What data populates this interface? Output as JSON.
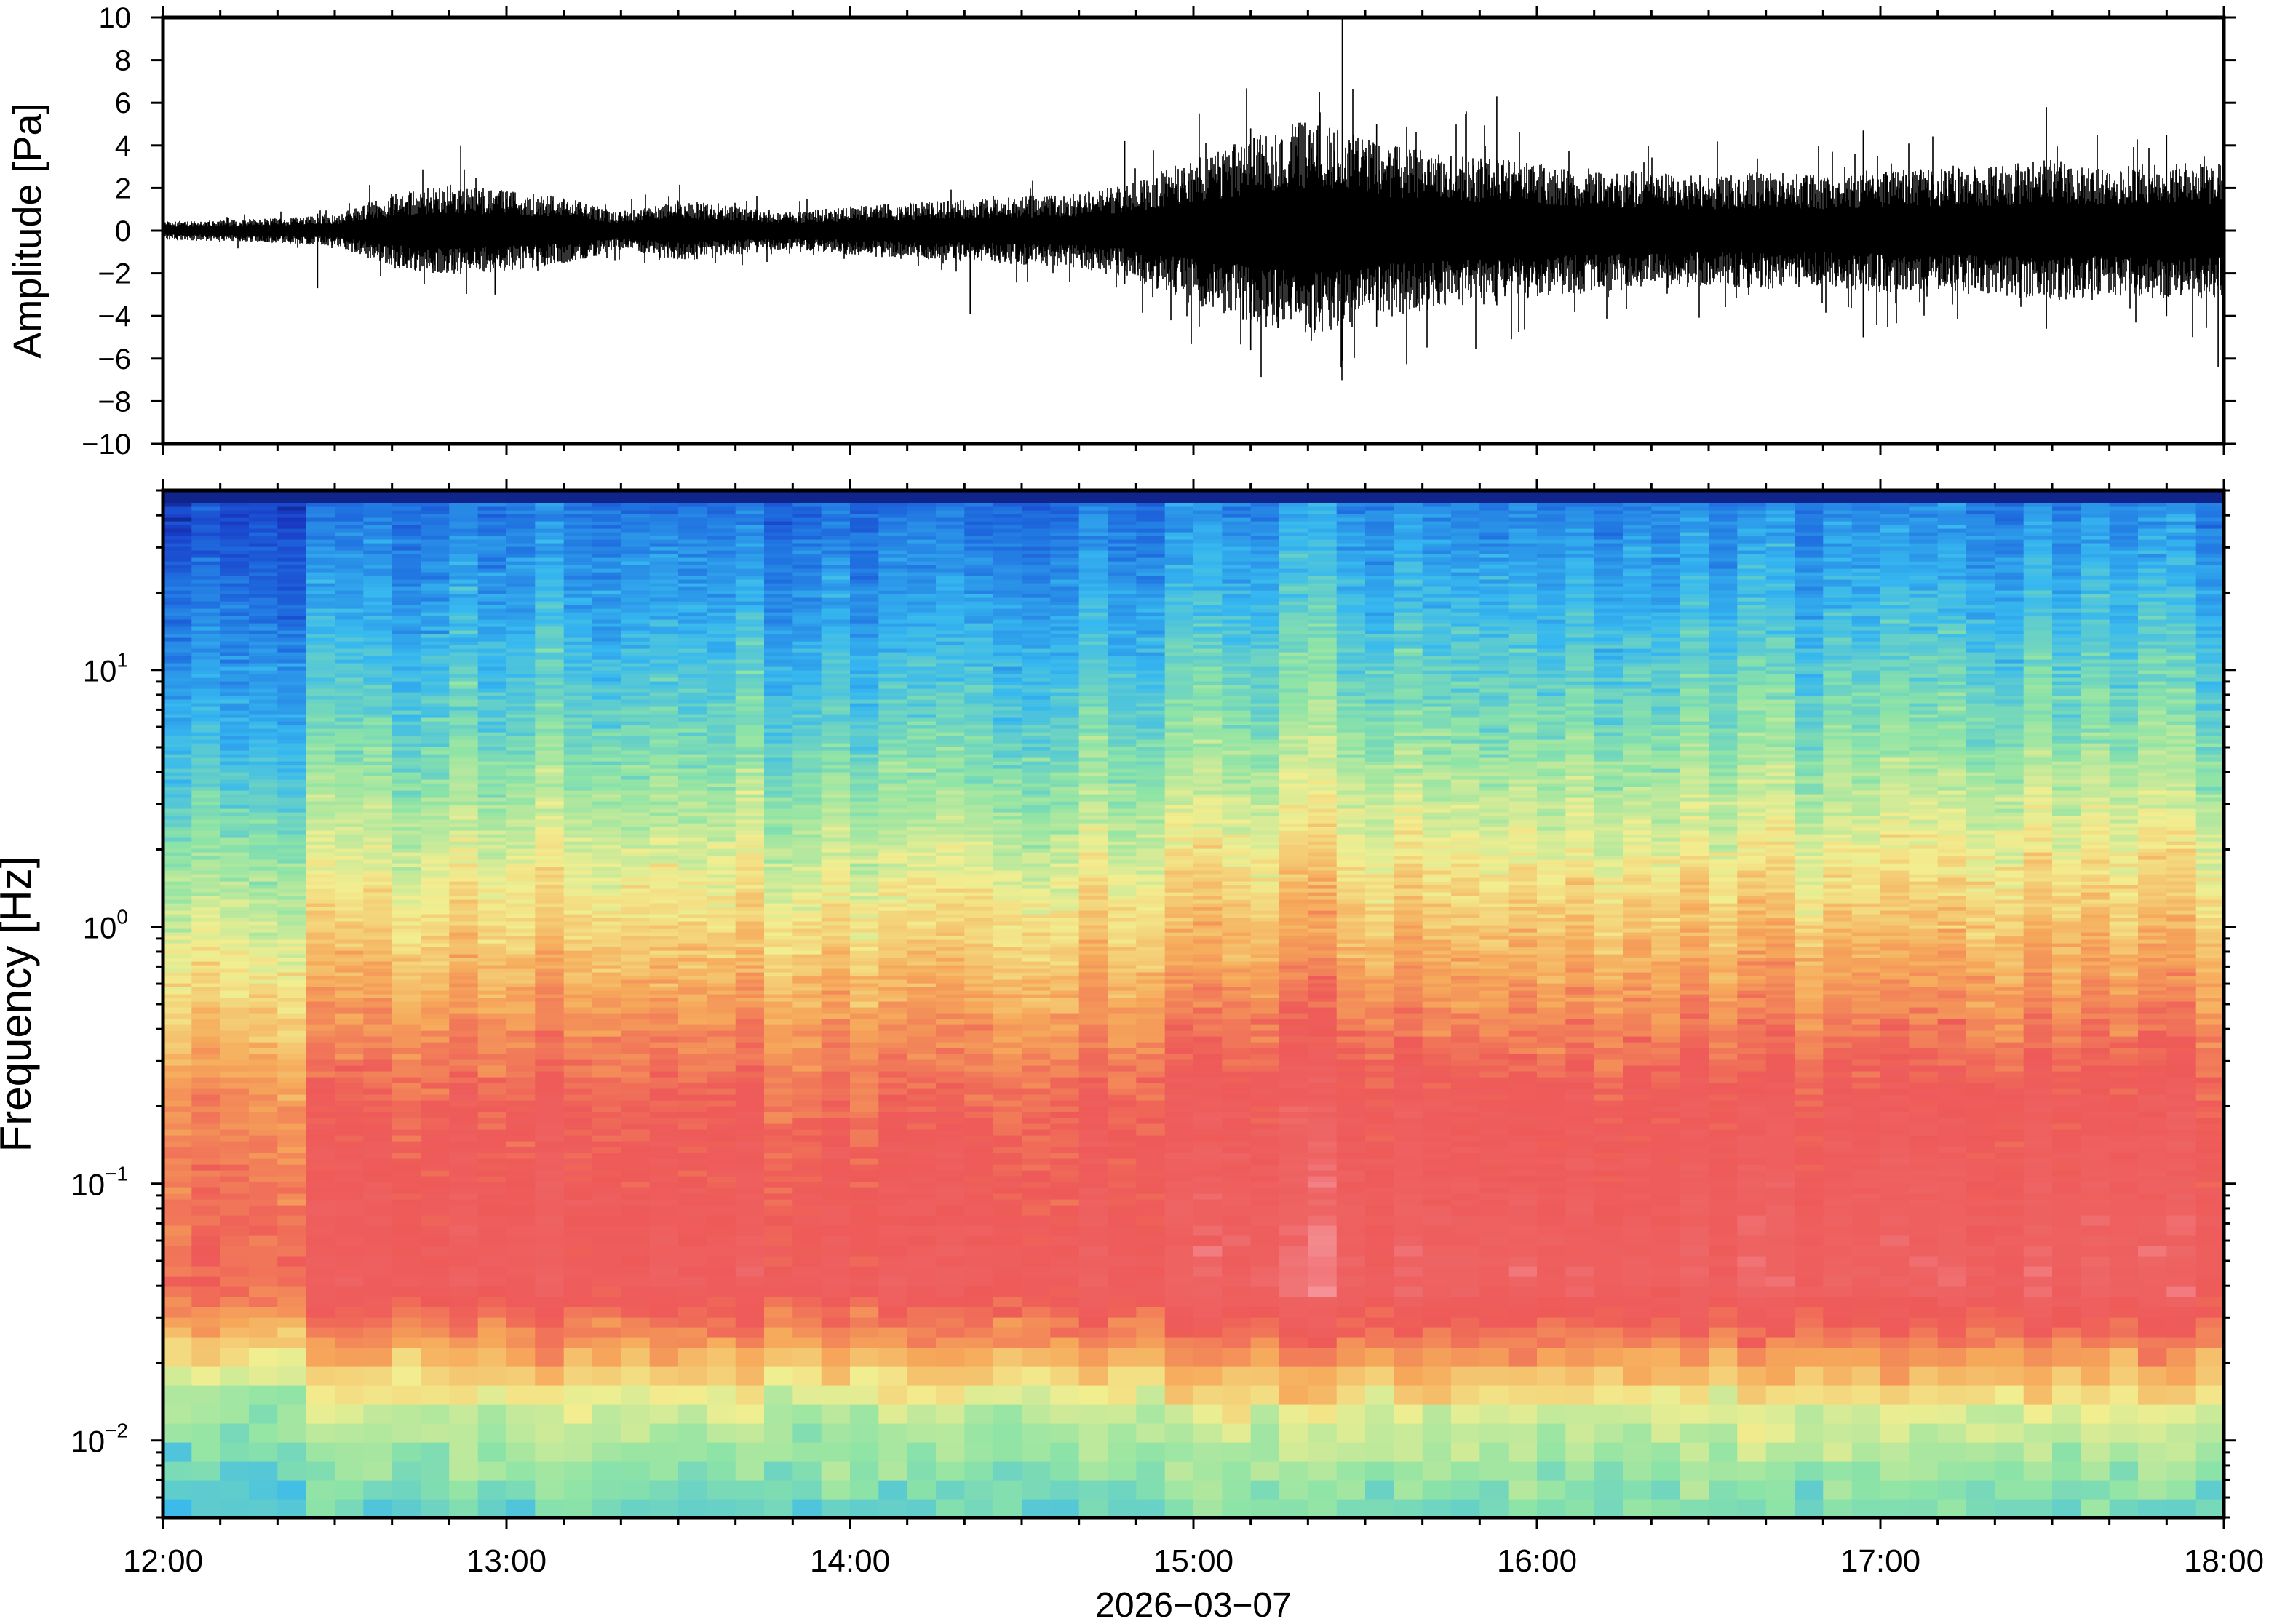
{
  "chart_data": [
    {
      "type": "line",
      "ylabel": "Amplitude [Pa]",
      "ylim": [
        -10,
        10
      ],
      "yticks": [
        -10,
        -8,
        -6,
        -4,
        -2,
        0,
        2,
        4,
        6,
        8,
        10
      ],
      "ytick_labels": [
        "−10",
        "−8",
        "−6",
        "−4",
        "−2",
        "0",
        "2",
        "4",
        "6",
        "8",
        "10"
      ],
      "xlim": [
        "12:00",
        "18:00"
      ],
      "envelope": {
        "note": "waveform amplitude envelope (Pa) sampled every 10 minutes",
        "time": [
          "12:00",
          "12:10",
          "12:20",
          "12:30",
          "12:40",
          "12:50",
          "13:00",
          "13:10",
          "13:20",
          "13:30",
          "13:40",
          "13:50",
          "14:00",
          "14:10",
          "14:20",
          "14:30",
          "14:40",
          "14:50",
          "15:00",
          "15:10",
          "15:20",
          "15:30",
          "15:40",
          "15:50",
          "16:00",
          "16:10",
          "16:20",
          "16:30",
          "16:40",
          "16:50",
          "17:00",
          "17:10",
          "17:20",
          "17:30",
          "17:40",
          "17:50",
          "18:00"
        ],
        "amplitude": [
          0.3,
          0.35,
          0.4,
          0.5,
          1.2,
          1.5,
          1.3,
          1.1,
          0.6,
          1.0,
          0.8,
          0.6,
          0.8,
          0.9,
          1.0,
          1.1,
          1.2,
          1.6,
          2.4,
          3.0,
          3.6,
          3.0,
          2.6,
          2.4,
          2.2,
          2.0,
          1.9,
          1.8,
          1.9,
          1.8,
          2.0,
          2.0,
          2.1,
          2.3,
          2.1,
          2.2,
          2.2
        ],
        "spikes": [
          {
            "time": "12:27",
            "max": 0.8,
            "min": -2.7
          },
          {
            "time": "12:52",
            "max": 4.0,
            "min": -1.0
          },
          {
            "time": "12:58",
            "max": 1.5,
            "min": -3.0
          },
          {
            "time": "14:21",
            "max": 1.0,
            "min": -3.9
          },
          {
            "time": "14:48",
            "max": 4.2,
            "min": -2.5
          },
          {
            "time": "15:01",
            "max": 5.5,
            "min": -4.5
          },
          {
            "time": "15:10",
            "max": 4.8,
            "min": -5.6
          },
          {
            "time": "15:22",
            "max": 6.5,
            "min": -4.0
          },
          {
            "time": "15:26",
            "max": 10.0,
            "min": -6.1
          },
          {
            "time": "15:32",
            "max": 5.0,
            "min": -4.5
          },
          {
            "time": "15:53",
            "max": 6.3,
            "min": -3.5
          },
          {
            "time": "16:57",
            "max": 4.7,
            "min": -5.0
          },
          {
            "time": "17:29",
            "max": 5.8,
            "min": -4.6
          },
          {
            "time": "17:50",
            "max": 4.5,
            "min": -4.0
          },
          {
            "time": "17:59",
            "max": 2.5,
            "min": -6.4
          }
        ]
      }
    },
    {
      "type": "heatmap",
      "ylabel": "Frequency [Hz]",
      "xlabel": "2026−03−07",
      "yscale": "log",
      "ylim": [
        0.005,
        50
      ],
      "yticks": [
        0.01,
        0.1,
        1,
        10
      ],
      "ytick_labels": [
        {
          "base": "10",
          "exp": "−2"
        },
        {
          "base": "10",
          "exp": "−1"
        },
        {
          "base": "10",
          "exp": "0"
        },
        {
          "base": "10",
          "exp": "1"
        }
      ],
      "xlim": [
        "12:00",
        "18:00"
      ],
      "xticks": [
        "12:00",
        "13:00",
        "14:00",
        "15:00",
        "16:00",
        "17:00",
        "18:00"
      ],
      "colormap": "spectral (blue → cyan → green → yellow → orange → red → pink)",
      "colors": {
        "top_edge": "#0b1a6e",
        "blue": "#1f6fe0",
        "cyan": "#36b8f0",
        "green": "#8ee4a6",
        "yellow": "#f2ee90",
        "orange": "#f6a95a",
        "red": "#ee5a58",
        "pink": "#f7909a"
      }
    }
  ]
}
